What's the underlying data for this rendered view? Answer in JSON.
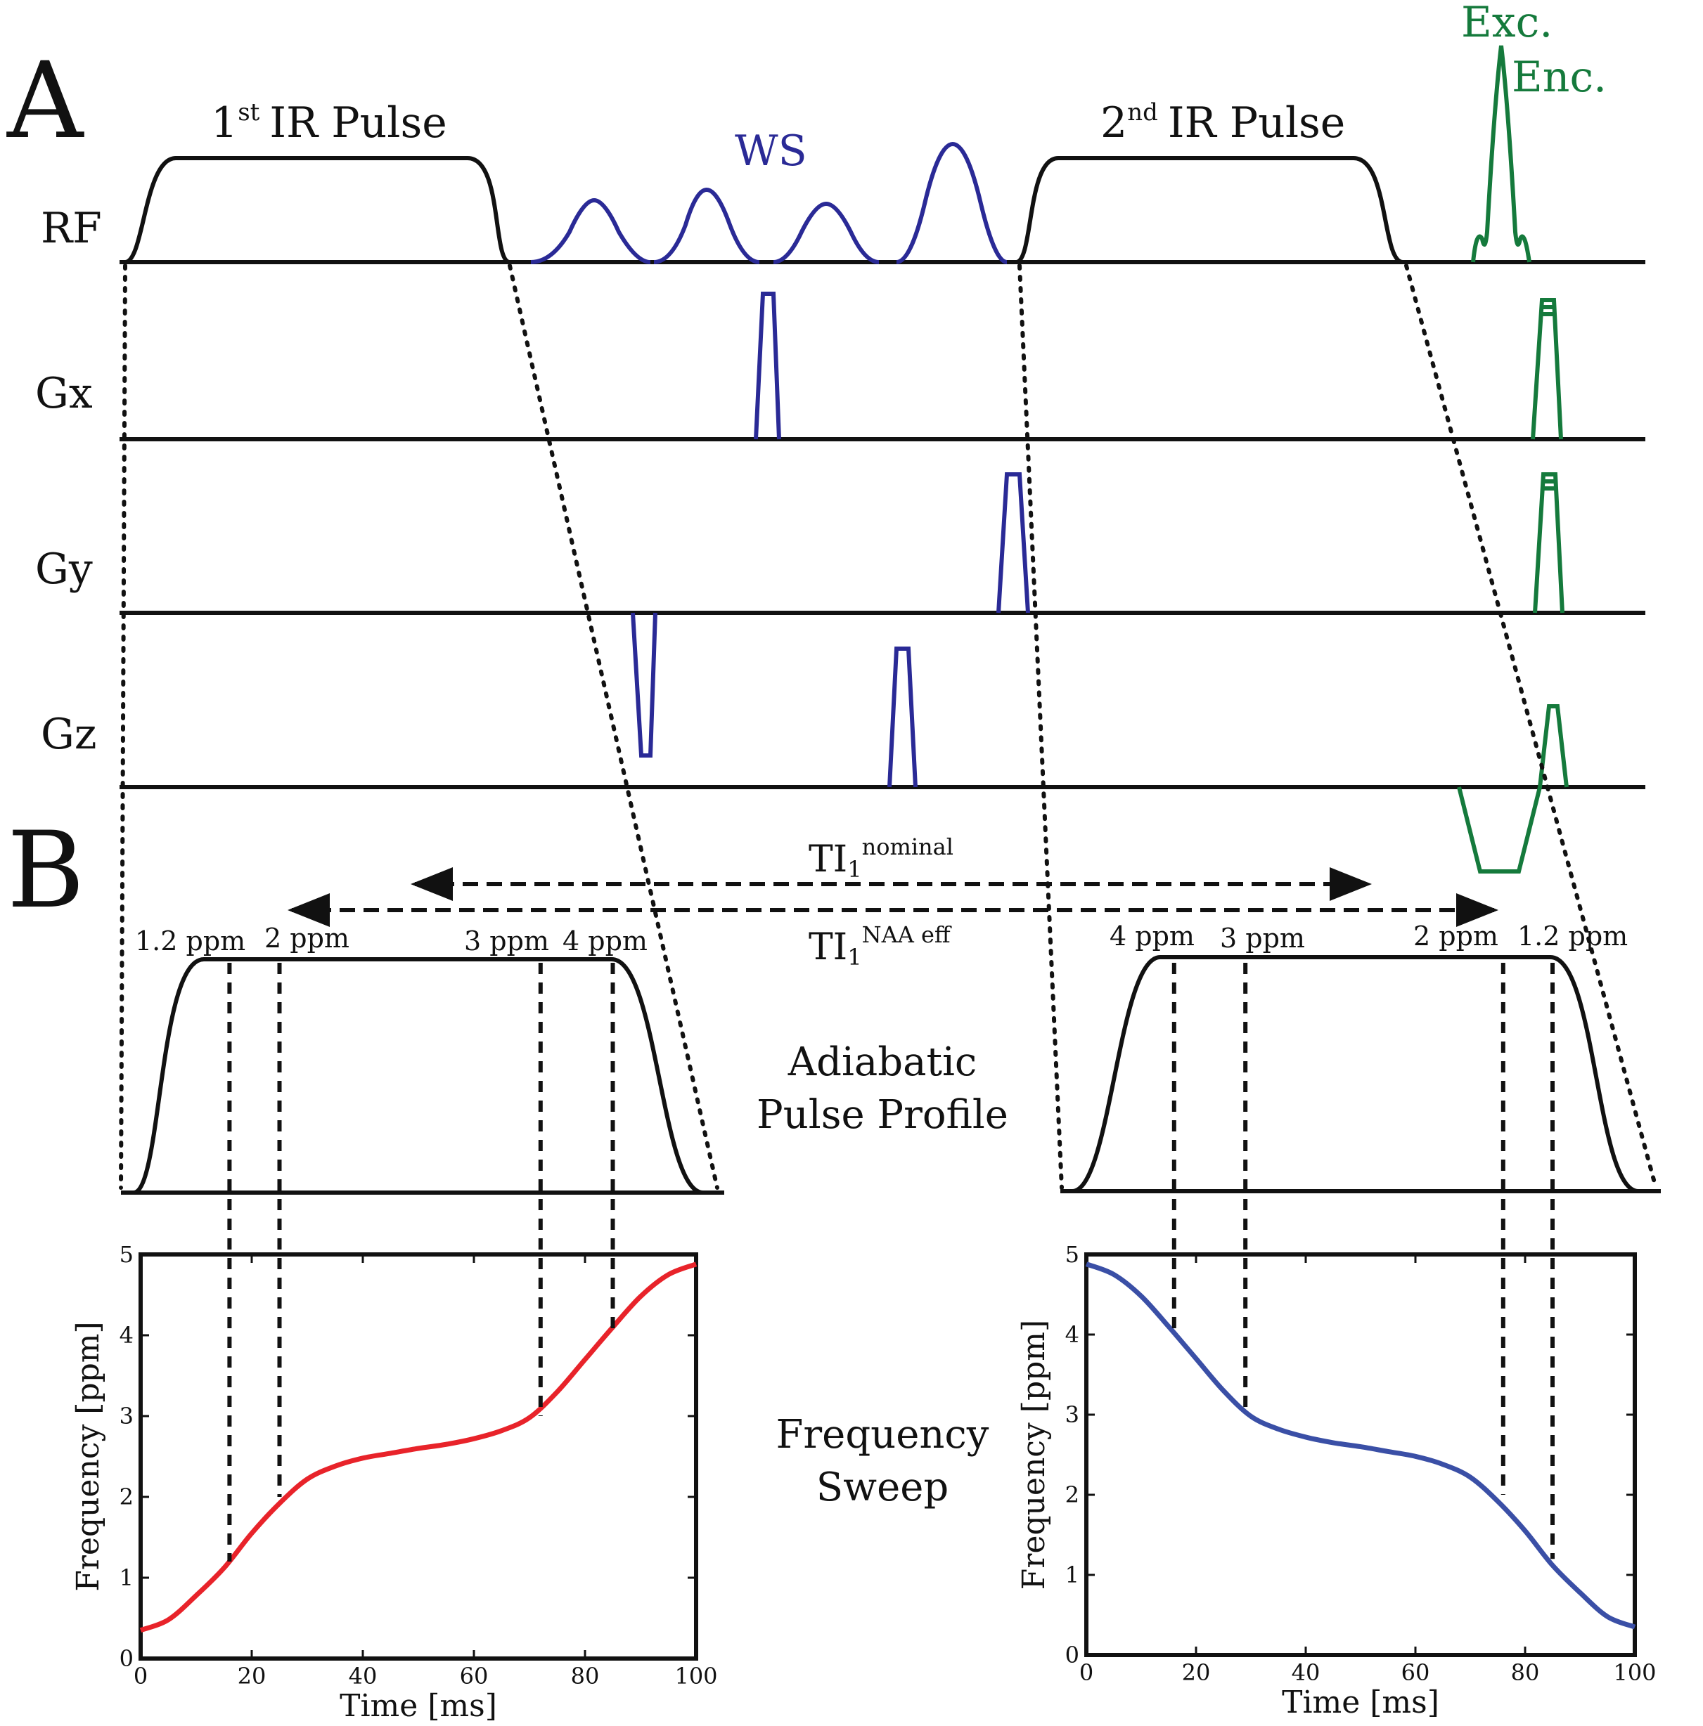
{
  "figure": {
    "panel_a": "A",
    "panel_b": "B",
    "rows": {
      "rf": "RF",
      "gx": "Gx",
      "gy": "Gy",
      "gz": "Gz"
    },
    "first_ir": {
      "num": "1",
      "sup": "st",
      "rest": "IR Pulse"
    },
    "second_ir": {
      "num": "2",
      "sup": "nd",
      "rest": "IR Pulse"
    },
    "ws_label": "WS",
    "exc_label": "Exc.",
    "enc_label": "Enc.",
    "ti_nominal": {
      "base": "TI",
      "sub": "1",
      "sup": "nominal"
    },
    "ti_naa": {
      "base": "TI",
      "sub": "1",
      "sup": "NAA eff"
    },
    "ppm_left": [
      "1.2 ppm",
      "2 ppm",
      "3 ppm",
      "4 ppm"
    ],
    "ppm_right": [
      "4 ppm",
      "3 ppm",
      "2 ppm",
      "1.2 ppm"
    ],
    "profile_label": [
      "Adiabatic",
      "Pulse Profile"
    ],
    "sweep_label": [
      "Frequency",
      "Sweep"
    ],
    "colors": {
      "ir": "#111111",
      "ws": "#2a2a96",
      "readout": "#157a3c",
      "sweep_up": "#e8232a",
      "sweep_down": "#3a4fa6"
    }
  },
  "chart_data": [
    {
      "type": "line",
      "name": "frequency-sweep-1st-ir",
      "xlabel": "Time [ms]",
      "ylabel": "Frequency [ppm]",
      "xlim": [
        0,
        100
      ],
      "ylim": [
        0,
        5
      ],
      "xticks": [
        0,
        20,
        40,
        60,
        80,
        100
      ],
      "yticks": [
        0,
        1,
        2,
        3,
        4,
        5
      ],
      "series": [
        {
          "name": "1st IR sweep",
          "color": "#e8232a",
          "x": [
            0,
            5,
            10,
            15,
            20,
            25,
            30,
            35,
            40,
            45,
            50,
            55,
            60,
            65,
            70,
            75,
            80,
            85,
            90,
            95,
            100
          ],
          "y": [
            0.35,
            0.48,
            0.78,
            1.12,
            1.55,
            1.92,
            2.22,
            2.38,
            2.48,
            2.54,
            2.6,
            2.65,
            2.72,
            2.82,
            2.98,
            3.3,
            3.7,
            4.1,
            4.48,
            4.75,
            4.88
          ]
        }
      ],
      "markers": [
        {
          "x": 16,
          "y": 1.2,
          "label": "1.2 ppm"
        },
        {
          "x": 25,
          "y": 2,
          "label": "2 ppm"
        },
        {
          "x": 72,
          "y": 3,
          "label": "3 ppm"
        },
        {
          "x": 85,
          "y": 4,
          "label": "4 ppm"
        }
      ]
    },
    {
      "type": "line",
      "name": "frequency-sweep-2nd-ir",
      "xlabel": "Time [ms]",
      "ylabel": "Frequency [ppm]",
      "xlim": [
        0,
        100
      ],
      "ylim": [
        0,
        5
      ],
      "xticks": [
        0,
        20,
        40,
        60,
        80,
        100
      ],
      "yticks": [
        0,
        1,
        2,
        3,
        4,
        5
      ],
      "series": [
        {
          "name": "2nd IR sweep",
          "color": "#3a4fa6",
          "x": [
            0,
            5,
            10,
            15,
            20,
            25,
            30,
            35,
            40,
            45,
            50,
            55,
            60,
            65,
            70,
            75,
            80,
            85,
            90,
            95,
            100
          ],
          "y": [
            4.88,
            4.75,
            4.48,
            4.1,
            3.7,
            3.3,
            2.98,
            2.82,
            2.72,
            2.65,
            2.6,
            2.54,
            2.48,
            2.38,
            2.22,
            1.92,
            1.55,
            1.12,
            0.78,
            0.48,
            0.35
          ]
        }
      ],
      "markers": [
        {
          "x": 16,
          "y": 4,
          "label": "4 ppm"
        },
        {
          "x": 29,
          "y": 3,
          "label": "3 ppm"
        },
        {
          "x": 76,
          "y": 2,
          "label": "2 ppm"
        },
        {
          "x": 85,
          "y": 1.2,
          "label": "1.2 ppm"
        }
      ]
    }
  ]
}
